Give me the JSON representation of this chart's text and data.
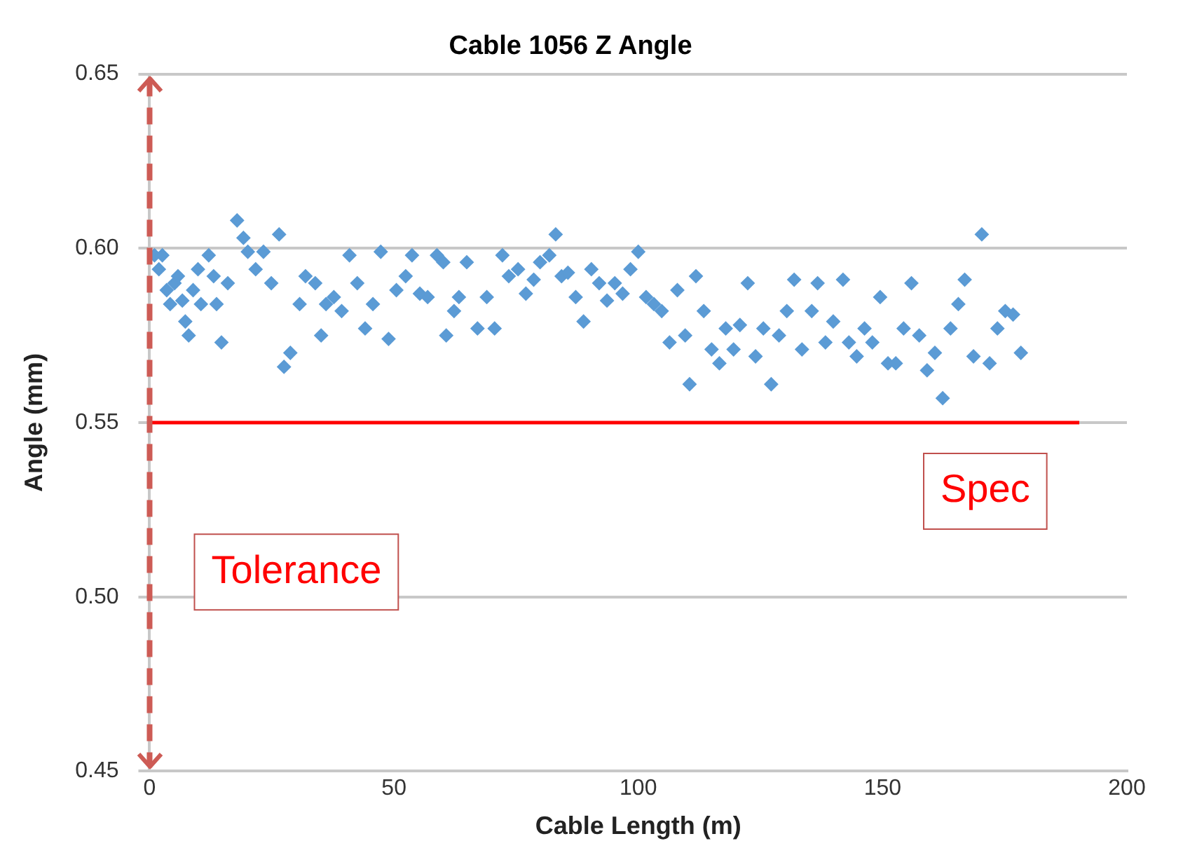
{
  "chart_data": {
    "type": "scatter",
    "title": "Cable 1056 Z Angle",
    "xlabel": "Cable Length (m)",
    "ylabel": "Angle (mm)",
    "xlim": [
      0,
      200
    ],
    "xticks": [
      0,
      50,
      100,
      150,
      200
    ],
    "ylim": [
      0.45,
      0.65
    ],
    "yticks": [
      {
        "value": 0.45,
        "label": "0.45"
      },
      {
        "value": 0.5,
        "label": "0.50"
      },
      {
        "value": 0.55,
        "label": "0.55"
      },
      {
        "value": 0.6,
        "label": "0.60"
      },
      {
        "value": 0.65,
        "label": "0.65"
      }
    ],
    "grid": "y",
    "legend": false,
    "marker": "diamond",
    "ref_lines": [
      {
        "axis": "y",
        "value": 0.55,
        "label": "Spec",
        "color": "#ff0000",
        "line_style": "solid"
      },
      {
        "axis": "x",
        "value": 0,
        "label": "Tolerance",
        "color": "#cd5b55",
        "line_style": "dashed"
      }
    ],
    "series": [
      {
        "color": "#5b9bd5",
        "x": [
          1.0,
          1.9,
          2.6,
          3.5,
          4.2,
          5.1,
          5.8,
          6.7,
          7.3,
          8.0,
          8.9,
          9.9,
          10.5,
          12.1,
          13.1,
          13.7,
          14.7,
          16.0,
          17.9,
          19.2,
          20.1,
          21.7,
          23.3,
          24.9,
          26.5,
          27.5,
          28.8,
          30.7,
          31.9,
          33.9,
          35.1,
          36.1,
          37.7,
          39.3,
          40.9,
          42.5,
          44.1,
          45.7,
          47.3,
          48.9,
          50.5,
          52.4,
          53.7,
          55.3,
          56.9,
          58.8,
          60.1,
          60.7,
          62.3,
          63.3,
          64.9,
          67.1,
          69.0,
          70.6,
          72.2,
          73.5,
          75.4,
          77.0,
          78.6,
          79.9,
          81.8,
          83.1,
          84.3,
          85.6,
          87.2,
          88.8,
          90.4,
          92.0,
          93.6,
          95.2,
          96.8,
          98.4,
          100.0,
          101.6,
          103.2,
          104.8,
          106.4,
          108.0,
          109.6,
          110.5,
          111.8,
          113.4,
          115.0,
          116.6,
          117.9,
          119.5,
          120.8,
          122.4,
          124.0,
          125.6,
          127.2,
          128.8,
          130.4,
          131.9,
          133.5,
          135.5,
          136.7,
          138.3,
          139.9,
          141.9,
          143.1,
          144.7,
          146.3,
          147.9,
          149.5,
          151.1,
          152.7,
          154.3,
          155.9,
          157.5,
          159.1,
          160.7,
          162.3,
          163.9,
          165.5,
          166.8,
          168.6,
          170.3,
          171.9,
          173.5,
          175.1,
          176.7,
          178.3
        ],
        "values": [
          0.598,
          0.594,
          0.598,
          0.588,
          0.584,
          0.59,
          0.592,
          0.585,
          0.579,
          0.575,
          0.588,
          0.594,
          0.584,
          0.598,
          0.592,
          0.584,
          0.573,
          0.59,
          0.608,
          0.603,
          0.599,
          0.594,
          0.599,
          0.59,
          0.604,
          0.566,
          0.57,
          0.584,
          0.592,
          0.59,
          0.575,
          0.584,
          0.586,
          0.582,
          0.598,
          0.59,
          0.577,
          0.584,
          0.599,
          0.574,
          0.588,
          0.592,
          0.598,
          0.587,
          0.586,
          0.598,
          0.596,
          0.575,
          0.582,
          0.586,
          0.596,
          0.577,
          0.586,
          0.577,
          0.598,
          0.592,
          0.594,
          0.587,
          0.591,
          0.596,
          0.598,
          0.604,
          0.592,
          0.593,
          0.586,
          0.579,
          0.594,
          0.59,
          0.585,
          0.59,
          0.587,
          0.594,
          0.599,
          0.586,
          0.584,
          0.582,
          0.573,
          0.588,
          0.575,
          0.561,
          0.592,
          0.582,
          0.571,
          0.567,
          0.577,
          0.571,
          0.578,
          0.59,
          0.569,
          0.577,
          0.561,
          0.575,
          0.582,
          0.591,
          0.571,
          0.582,
          0.59,
          0.573,
          0.579,
          0.591,
          0.573,
          0.569,
          0.577,
          0.573,
          0.586,
          0.567,
          0.567,
          0.577,
          0.59,
          0.575,
          0.565,
          0.57,
          0.557,
          0.577,
          0.584,
          0.591,
          0.569,
          0.604,
          0.567,
          0.577,
          0.582,
          0.581,
          0.57
        ]
      }
    ]
  }
}
